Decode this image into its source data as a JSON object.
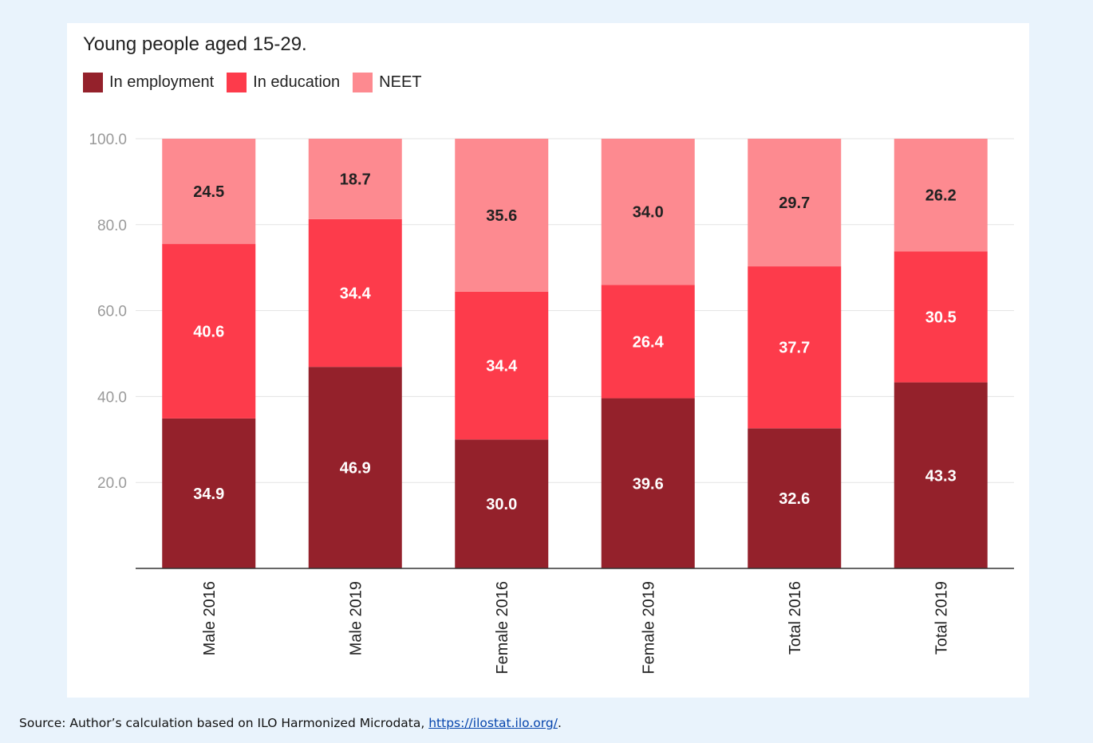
{
  "chart_data": {
    "type": "bar",
    "stacked": true,
    "title": "Young people aged 15-29.",
    "categories": [
      "Male 2016",
      "Male 2019",
      "Female 2016",
      "Female 2019",
      "Total 2016",
      "Total 2019"
    ],
    "series": [
      {
        "name": "In employment",
        "color": "#94212b",
        "values": [
          34.9,
          46.9,
          30.0,
          39.6,
          32.6,
          43.3
        ]
      },
      {
        "name": "In education",
        "color": "#fd3b4b",
        "values": [
          40.6,
          34.4,
          34.4,
          26.4,
          37.7,
          30.5
        ]
      },
      {
        "name": "NEET",
        "color": "#fd8a90",
        "values": [
          24.5,
          18.7,
          35.6,
          34.0,
          29.7,
          26.2
        ]
      }
    ],
    "value_labels": [
      [
        "34.9",
        "46.9",
        "30.0",
        "39.6",
        "32.6",
        "43.3"
      ],
      [
        "40.6",
        "34.4",
        "34.4",
        "26.4",
        "37.7",
        "30.5"
      ],
      [
        "24.5",
        "18.7",
        "35.6",
        "34.0",
        "29.7",
        "26.2"
      ]
    ],
    "y_ticks": [
      "20.0",
      "40.0",
      "60.0",
      "80.0",
      "100.0"
    ],
    "ylim": [
      0,
      100
    ],
    "grid": true,
    "legend_position": "top-left",
    "xlabel": "",
    "ylabel": ""
  },
  "source": {
    "prefix": "Source: Author’s calculation based on ILO Harmonized Microdata, ",
    "link_text": "https://ilostat.ilo.org/",
    "suffix": "."
  }
}
